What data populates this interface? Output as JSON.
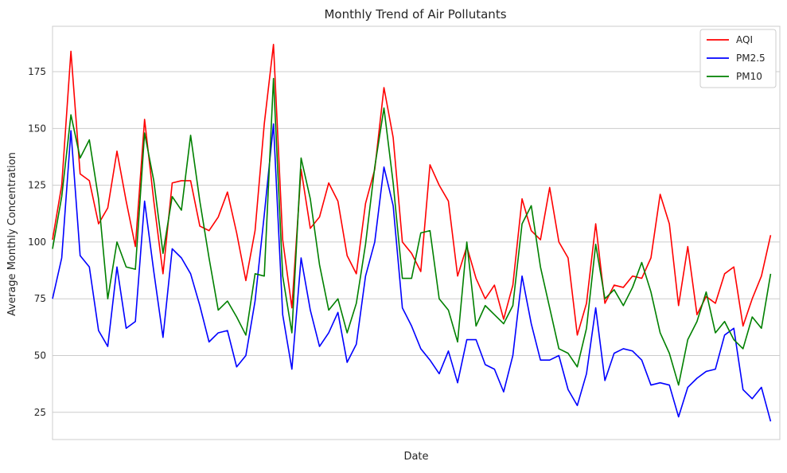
{
  "chart_data": {
    "type": "line",
    "title": "Monthly Trend of Air Pollutants",
    "xlabel": "Date",
    "ylabel": "Average Monthly Concentration",
    "ylim": [
      13,
      195
    ],
    "yticks": [
      25,
      50,
      75,
      100,
      125,
      150,
      175
    ],
    "grid": "horizontal",
    "legend_position": "top-right",
    "x_index_range": [
      0,
      79
    ],
    "series": [
      {
        "name": "AQI",
        "color": "#ff0000",
        "values": [
          101,
          125,
          184,
          130,
          127,
          108,
          115,
          140,
          118,
          98,
          154,
          118,
          86,
          126,
          127,
          127,
          107,
          105,
          111,
          122,
          104,
          83,
          105,
          152,
          187,
          101,
          71,
          132,
          106,
          111,
          126,
          118,
          94,
          86,
          117,
          132,
          168,
          146,
          100,
          95,
          87,
          134,
          125,
          118,
          85,
          98,
          84,
          75,
          81,
          66,
          81,
          119,
          105,
          101,
          124,
          100,
          93,
          59,
          73,
          108,
          73,
          81,
          80,
          85,
          84,
          93,
          121,
          108,
          72,
          98,
          68,
          76,
          73,
          86,
          89,
          63,
          75,
          85,
          103
        ]
      },
      {
        "name": "PM2.5",
        "color": "#0000ff",
        "values": [
          75,
          93,
          149,
          94,
          89,
          61,
          54,
          89,
          62,
          65,
          118,
          87,
          58,
          97,
          93,
          86,
          72,
          56,
          60,
          61,
          45,
          50,
          74,
          112,
          152,
          68,
          44,
          93,
          70,
          54,
          60,
          69,
          47,
          55,
          85,
          100,
          133,
          116,
          71,
          63,
          53,
          48,
          42,
          52,
          38,
          57,
          57,
          46,
          44,
          34,
          50,
          85,
          64,
          48,
          48,
          50,
          35,
          28,
          42,
          71,
          39,
          51,
          53,
          52,
          48,
          37,
          38,
          37,
          23,
          36,
          40,
          43,
          44,
          59,
          62,
          35,
          31,
          36,
          21
        ]
      },
      {
        "name": "PM10",
        "color": "#008000",
        "values": [
          97,
          120,
          156,
          137,
          145,
          119,
          75,
          100,
          89,
          88,
          148,
          127,
          95,
          120,
          114,
          147,
          118,
          93,
          70,
          74,
          67,
          59,
          86,
          85,
          172,
          85,
          60,
          137,
          119,
          90,
          70,
          75,
          60,
          73,
          99,
          133,
          159,
          126,
          84,
          84,
          104,
          105,
          75,
          70,
          56,
          100,
          63,
          72,
          68,
          64,
          72,
          108,
          116,
          89,
          71,
          53,
          51,
          45,
          62,
          99,
          75,
          79,
          72,
          80,
          91,
          78,
          60,
          51,
          37,
          57,
          65,
          78,
          60,
          65,
          57,
          53,
          67,
          62,
          86
        ]
      }
    ]
  }
}
